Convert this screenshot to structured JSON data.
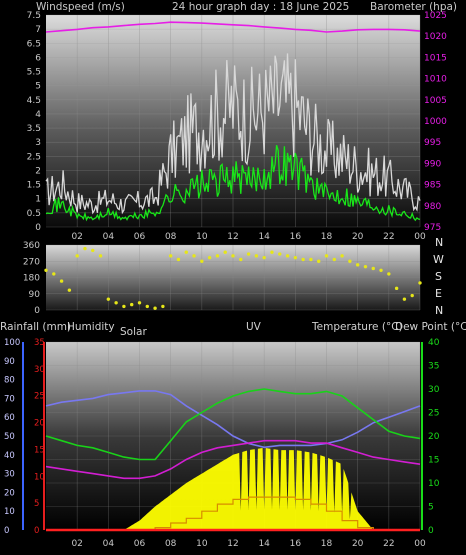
{
  "header": {
    "left": "Windspeed (m/s)",
    "center": "24 hour graph day : 18 June 2025",
    "right": "Barometer (hpa)"
  },
  "direction_letters": [
    "N",
    "W",
    "S",
    "E",
    "N"
  ],
  "bottom_labels": {
    "rain": "Rainfall (mm)",
    "humidity": "Humidity",
    "solar": "Solar",
    "uv": "UV",
    "temp": "Temperature (°C)",
    "dew": "Dew Point (°C)"
  },
  "colors": {
    "wind_gust": "#d8d8d8",
    "wind_avg": "#19e619",
    "barometer": "#e61ee6",
    "direction": "#e6e619",
    "humidity": "#7878f0",
    "temperature": "#19d219",
    "dewpoint": "#d21ed2",
    "solar": "#ffff00",
    "uv": "#d78c00",
    "rain": "#ff2020",
    "axis_blue": "#3c64ff",
    "axis_green": "#19dc19",
    "axis_red": "#e61e1e"
  },
  "chart_data": [
    {
      "type": "line",
      "title": "24 hour graph day : 18 June 2025",
      "xlabel": "",
      "ylabel": "Windspeed (m/s)",
      "y2label": "Barometer (hpa)",
      "x_ticks": [
        "02",
        "04",
        "06",
        "08",
        "10",
        "12",
        "14",
        "16",
        "18",
        "20",
        "22",
        "00"
      ],
      "xlim": [
        0,
        24
      ],
      "ylim": [
        0,
        7.5
      ],
      "y_ticks": [
        "0",
        "0.5",
        "1",
        "1.5",
        "2",
        "2.5",
        "3",
        "3.5",
        "4",
        "4.5",
        "5",
        "5.5",
        "6",
        "6.5",
        "7",
        "7.5"
      ],
      "y2lim": [
        975,
        1025
      ],
      "y2_ticks": [
        "975",
        "980",
        "985",
        "990",
        "995",
        "1000",
        "1005",
        "1010",
        "1015",
        "1020",
        "1025"
      ],
      "x": [
        0,
        1,
        2,
        3,
        4,
        5,
        6,
        7,
        8,
        9,
        10,
        11,
        12,
        13,
        14,
        15,
        16,
        17,
        18,
        19,
        20,
        21,
        22,
        23,
        24
      ],
      "series": [
        {
          "name": "Windspeed gust",
          "values": [
            1.2,
            1.5,
            0.9,
            0.8,
            1.0,
            0.8,
            0.9,
            1.0,
            2.5,
            3.2,
            3.6,
            4.0,
            4.3,
            3.9,
            4.2,
            4.5,
            4.3,
            3.3,
            2.7,
            2.5,
            2.1,
            1.9,
            1.7,
            1.3,
            0.9
          ]
        },
        {
          "name": "Windspeed average",
          "values": [
            0.7,
            0.8,
            0.4,
            0.3,
            0.5,
            0.3,
            0.4,
            0.5,
            1.1,
            1.3,
            1.5,
            1.6,
            1.8,
            1.6,
            1.9,
            2.3,
            2.1,
            1.6,
            1.1,
            1.2,
            0.9,
            0.8,
            0.6,
            0.5,
            0.3
          ]
        },
        {
          "name": "Barometer",
          "values": [
            1021.0,
            1021.3,
            1021.6,
            1022.0,
            1022.2,
            1022.5,
            1022.8,
            1023.0,
            1023.3,
            1023.2,
            1023.1,
            1022.9,
            1022.7,
            1022.5,
            1022.2,
            1021.9,
            1021.6,
            1021.4,
            1021.0,
            1021.2,
            1021.5,
            1021.6,
            1021.6,
            1021.5,
            1021.2
          ]
        }
      ]
    },
    {
      "type": "scatter",
      "ylabel": "Wind direction",
      "ylim": [
        0,
        360
      ],
      "y_ticks": [
        "0",
        "90",
        "180",
        "270",
        "360"
      ],
      "xlim": [
        0,
        24
      ],
      "x": [
        0,
        0.5,
        1,
        1.5,
        2,
        2.5,
        3,
        3.5,
        4,
        4.5,
        5,
        5.5,
        6,
        6.5,
        7,
        7.5,
        8,
        8.5,
        9,
        9.5,
        10,
        10.5,
        11,
        11.5,
        12,
        12.5,
        13,
        13.5,
        14,
        14.5,
        15,
        15.5,
        16,
        16.5,
        17,
        17.5,
        18,
        18.5,
        19,
        19.5,
        20,
        20.5,
        21,
        21.5,
        22,
        22.5,
        23,
        23.5,
        24
      ],
      "series": [
        {
          "name": "Wind direction",
          "values": [
            220,
            200,
            160,
            110,
            300,
            340,
            330,
            300,
            60,
            40,
            20,
            30,
            40,
            20,
            10,
            20,
            300,
            280,
            320,
            300,
            270,
            290,
            300,
            320,
            300,
            280,
            310,
            300,
            290,
            320,
            310,
            300,
            290,
            280,
            280,
            270,
            300,
            280,
            300,
            270,
            250,
            240,
            230,
            220,
            200,
            120,
            60,
            80,
            150
          ]
        }
      ]
    },
    {
      "type": "area",
      "x_ticks": [
        "02",
        "04",
        "06",
        "08",
        "10",
        "12",
        "14",
        "16",
        "18",
        "20",
        "22",
        "00"
      ],
      "xlim": [
        0,
        24
      ],
      "ylim_humidity": [
        0,
        100
      ],
      "humidity_ticks": [
        "0",
        "10",
        "20",
        "30",
        "40",
        "50",
        "60",
        "70",
        "80",
        "90",
        "100"
      ],
      "ylim_rain": [
        0,
        35
      ],
      "rain_ticks": [
        "0",
        "5",
        "10",
        "15",
        "20",
        "25",
        "30",
        "35"
      ],
      "ylim_temp": [
        0,
        40
      ],
      "temp_ticks": [
        "0",
        "5",
        "10",
        "15",
        "20",
        "25",
        "30",
        "35",
        "40"
      ],
      "x": [
        0,
        1,
        2,
        3,
        4,
        5,
        6,
        7,
        8,
        9,
        10,
        11,
        12,
        13,
        14,
        15,
        16,
        17,
        18,
        19,
        20,
        21,
        22,
        23,
        24
      ],
      "series": [
        {
          "name": "Humidity",
          "axis": "humidity",
          "values": [
            66,
            68,
            69,
            70,
            72,
            73,
            74,
            74,
            72,
            66,
            61,
            56,
            50,
            46,
            44,
            45,
            45,
            45,
            46,
            48,
            52,
            57,
            60,
            63,
            66
          ]
        },
        {
          "name": "Temperature",
          "axis": "temp",
          "values": [
            20,
            19,
            18,
            17.5,
            16.5,
            15.5,
            15,
            15,
            19,
            23,
            25,
            27,
            28.5,
            29.5,
            30,
            29.5,
            29,
            29,
            29.5,
            28.5,
            26,
            23.5,
            21,
            20,
            19.5
          ]
        },
        {
          "name": "Dew Point",
          "axis": "temp",
          "values": [
            13.5,
            13,
            12.5,
            12,
            11.5,
            11,
            11,
            11.5,
            13,
            15,
            16.5,
            17.5,
            18,
            18.5,
            19,
            19,
            19,
            18.5,
            18.5,
            17.5,
            16.5,
            15.5,
            15,
            14.5,
            14
          ]
        },
        {
          "name": "Solar",
          "axis": "temp",
          "values": [
            0,
            0,
            0,
            0,
            0,
            0,
            2,
            5,
            7.5,
            10,
            12,
            14,
            16,
            17,
            17.5,
            17,
            17,
            16.5,
            15.5,
            14,
            4,
            0,
            0,
            0,
            0
          ]
        },
        {
          "name": "UV",
          "axis": "temp",
          "values": [
            0,
            0,
            0,
            0,
            0,
            0,
            0,
            0.5,
            1.5,
            2.5,
            4,
            5.5,
            6.5,
            7,
            7,
            7,
            6.5,
            5.5,
            4,
            2,
            0.5,
            0,
            0,
            0,
            0
          ]
        },
        {
          "name": "Rainfall",
          "axis": "rain",
          "values": [
            0,
            0,
            0,
            0,
            0,
            0,
            0,
            0,
            0,
            0,
            0,
            0,
            0,
            0,
            0,
            0,
            0,
            0,
            0,
            0,
            0,
            0,
            0,
            0,
            0
          ]
        }
      ]
    }
  ]
}
